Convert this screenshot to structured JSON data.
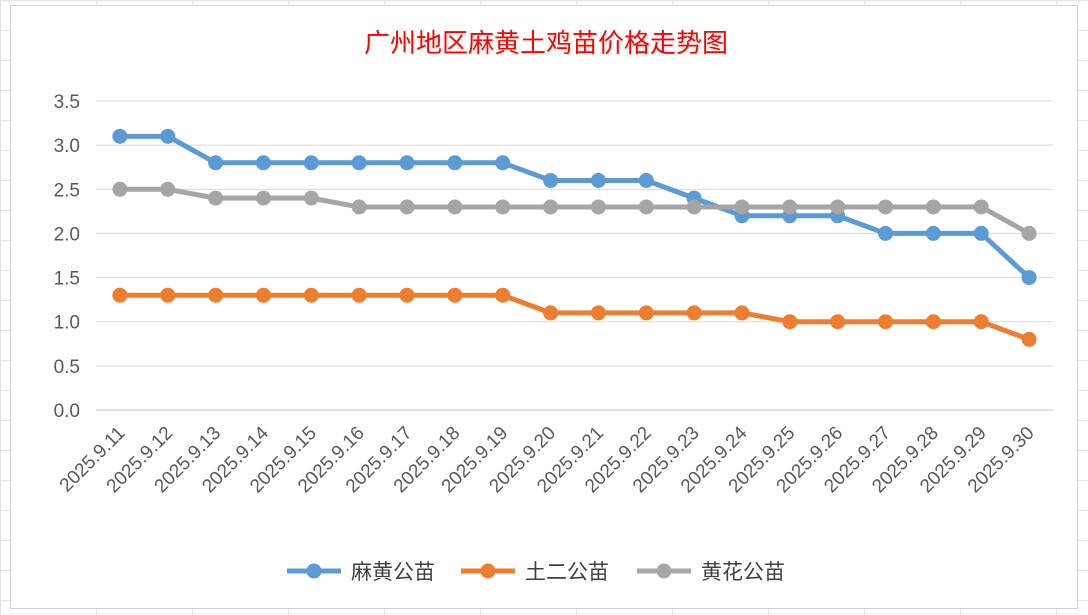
{
  "chart_data": {
    "type": "line",
    "title": "广州地区麻黄土鸡苗价格走势图",
    "xlabel": "",
    "ylabel": "",
    "categories": [
      "2025.9.11",
      "2025.9.12",
      "2025.9.13",
      "2025.9.14",
      "2025.9.15",
      "2025.9.16",
      "2025.9.17",
      "2025.9.18",
      "2025.9.19",
      "2025.9.20",
      "2025.9.21",
      "2025.9.22",
      "2025.9.23",
      "2025.9.24",
      "2025.9.25",
      "2025.9.26",
      "2025.9.27",
      "2025.9.28",
      "2025.9.29",
      "2025.9.30"
    ],
    "yticks": [
      "0.0",
      "0.5",
      "1.0",
      "1.5",
      "2.0",
      "2.5",
      "3.0",
      "3.5"
    ],
    "ylim": [
      0,
      3.5
    ],
    "grid": true,
    "legend_position": "bottom",
    "series": [
      {
        "name": "麻黄公苗",
        "color": "#5b9bd5",
        "values": [
          3.1,
          3.1,
          2.8,
          2.8,
          2.8,
          2.8,
          2.8,
          2.8,
          2.8,
          2.6,
          2.6,
          2.6,
          2.4,
          2.2,
          2.2,
          2.2,
          2.0,
          2.0,
          2.0,
          1.5
        ]
      },
      {
        "name": "土二公苗",
        "color": "#ed7d31",
        "values": [
          1.3,
          1.3,
          1.3,
          1.3,
          1.3,
          1.3,
          1.3,
          1.3,
          1.3,
          1.1,
          1.1,
          1.1,
          1.1,
          1.1,
          1.0,
          1.0,
          1.0,
          1.0,
          1.0,
          0.8
        ]
      },
      {
        "name": "黄花公苗",
        "color": "#a5a5a5",
        "values": [
          2.5,
          2.5,
          2.4,
          2.4,
          2.4,
          2.3,
          2.3,
          2.3,
          2.3,
          2.3,
          2.3,
          2.3,
          2.3,
          2.3,
          2.3,
          2.3,
          2.3,
          2.3,
          2.3,
          2.0
        ]
      }
    ]
  }
}
